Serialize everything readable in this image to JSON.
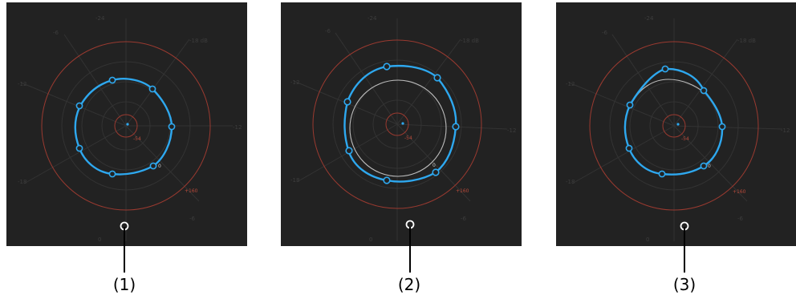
{
  "panels": [
    {
      "caption": "(1)",
      "axis_labels": [
        "-24",
        "-18 dB",
        "-12",
        "-6",
        "0",
        "-18",
        "-12",
        "-6",
        "-12 dB"
      ],
      "marker_labels": [
        "-54",
        "+160",
        "0"
      ],
      "handles": 8,
      "reference_circle": false
    },
    {
      "caption": "(2)",
      "axis_labels": [
        "-24",
        "-18 dB",
        "-12",
        "-6",
        "0",
        "-18",
        "-12",
        "-6",
        "-12 dB"
      ],
      "marker_labels": [
        "-54",
        "+160",
        "0"
      ],
      "handles": 8,
      "reference_circle": true
    },
    {
      "caption": "(3)",
      "axis_labels": [
        "-24",
        "-18 dB",
        "-12",
        "-6",
        "0",
        "-18",
        "-12",
        "-6",
        "-12 dB"
      ],
      "marker_labels": [
        "-54",
        "+160",
        "0"
      ],
      "handles": 8,
      "reference_circle": "partial"
    }
  ],
  "colors": {
    "panel_background": "#222222",
    "curve": "#2ea8ef",
    "limit_circle": "#9a3a30",
    "grid": "#333333",
    "reference_circle": "#bdbdbd"
  }
}
